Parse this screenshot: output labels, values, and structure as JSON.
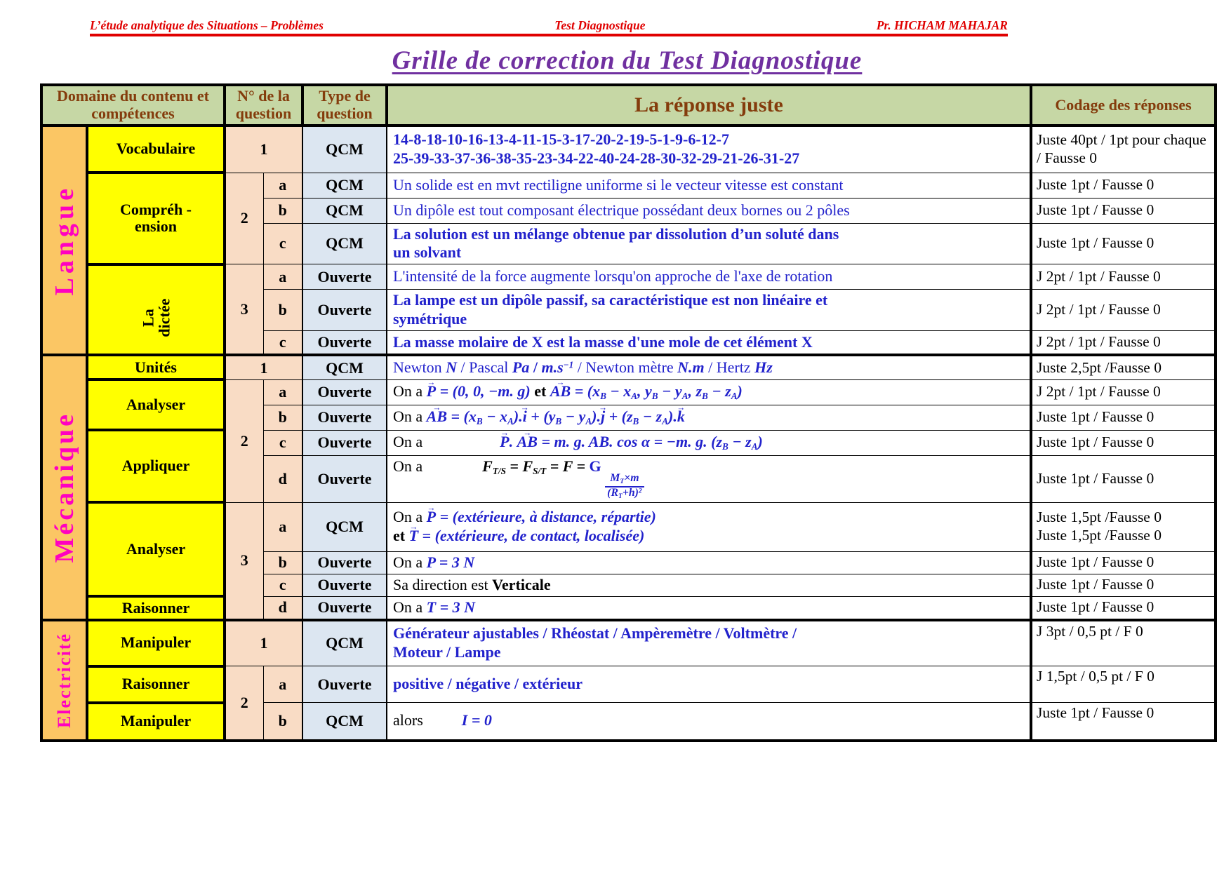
{
  "page_header": {
    "left": "L’étude analytique des Situations – Problèmes",
    "center": "Test Diagnostique",
    "right": "Pr. HICHAM MAHAJAR"
  },
  "title": "Grille de correction du Test Diagnostique",
  "colors": {
    "header_red": "#e00000",
    "title_purple": "#7030a0",
    "table_header_bg": "#c6d7a5",
    "table_header_text": "#843c0c",
    "domain_col_bg": "#fbc664",
    "domain_text": "#ff00c0",
    "competency_bg": "#ffff00",
    "question_col_bg": "#f9dcc5",
    "type_col_bg": "#dce6f1",
    "answer_blue": "#2222cc"
  },
  "table": {
    "header": {
      "domain": "Domaine du contenu et compétences",
      "num": "N° de la question",
      "type": "Type de question",
      "answer": "La réponse juste",
      "codage": "Codage des réponses"
    },
    "sections": [
      {
        "domain": "Langue",
        "rows": [
          {
            "comp": "Vocabulaire",
            "num": "1",
            "type": "QCM",
            "answer": [
              [
                {
                  "t": "14-8-18-10-16-13-4-11-15-3-17-20-2-19-5-1-9-6-12-7",
                  "cls": "blub"
                }
              ],
              [
                {
                  "t": "25-39-33-37-36-38-35-23-34-22-40-24-28-30-32-29-21-26-31-27",
                  "cls": "blub"
                }
              ]
            ],
            "codage": "Juste 40pt / 1pt pour chaque / Fausse 0"
          },
          {
            "comp": "Compréh -\nension",
            "num": "2",
            "letter": "a",
            "type": "QCM",
            "answer": [
              [
                {
                  "t": "Un solide est en mvt rectiligne uniforme si le vecteur vitesse est constant",
                  "cls": "blu"
                }
              ]
            ],
            "codage": "Juste 1pt / Fausse 0"
          },
          {
            "letter": "b",
            "type": "QCM",
            "answer": [
              [
                {
                  "t": "Un dipôle est tout composant électrique possédant deux bornes ou 2 pôles",
                  "cls": "blu"
                }
              ]
            ],
            "codage": "Juste 1pt / Fausse 0"
          },
          {
            "letter": "c",
            "type": "QCM",
            "answer": [
              [
                {
                  "t": "La solution est un mélange obtenue par dissolution d’un soluté dans",
                  "cls": "blub"
                }
              ],
              [
                {
                  "t": "un solvant",
                  "cls": "blub"
                }
              ]
            ],
            "codage": "Juste 1pt / Fausse 0"
          },
          {
            "comp": "La\ndictée",
            "num": "3",
            "letter": "a",
            "type": "Ouverte",
            "answer": [
              [
                {
                  "t": "L'intensité de la force augmente lorsqu'on approche de l'axe de rotation",
                  "cls": "blu"
                }
              ]
            ],
            "codage": "J 2pt / 1pt / Fausse 0"
          },
          {
            "letter": "b",
            "type": "Ouverte",
            "answer": [
              [
                {
                  "t": "La lampe est un dipôle passif, sa caractéristique est non linéaire et",
                  "cls": "blub"
                }
              ],
              [
                {
                  "t": "symétrique",
                  "cls": "blub"
                }
              ]
            ],
            "codage": "J 2pt / 1pt / Fausse 0"
          },
          {
            "letter": "c",
            "type": "Ouverte",
            "answer": [
              [
                {
                  "t": "La masse molaire de X est la masse d'une mole de cet élément X",
                  "cls": "blub"
                }
              ]
            ],
            "codage": "J 2pt / 1pt / Fausse 0"
          }
        ]
      },
      {
        "domain": "Mécanique",
        "rows": [
          {
            "comp": "Unités",
            "num": "1",
            "type": "QCM",
            "answer": [
              [
                {
                  "t": "Newton ",
                  "cls": "blu"
                },
                {
                  "t": "N",
                  "cls": "blubi"
                },
                {
                  "t": " / ",
                  "cls": "blu"
                },
                {
                  "t": "Pascal  ",
                  "cls": "blu"
                },
                {
                  "t": "Pa",
                  "cls": "blubi"
                },
                {
                  "t": "  /  ",
                  "cls": "blub"
                },
                {
                  "t": "m.s",
                  "cls": "blubi",
                  "sup": "−1"
                },
                {
                  "t": "   / ",
                  "cls": "blu"
                },
                {
                  "t": "Newton mètre   ",
                  "cls": "blu"
                },
                {
                  "t": "N.m",
                  "cls": "blubi"
                },
                {
                  "t": "   / ",
                  "cls": "blu"
                },
                {
                  "t": "Hertz   ",
                  "cls": "blu"
                },
                {
                  "t": "Hz",
                  "cls": "blubi"
                }
              ]
            ],
            "codage": "Juste 2,5pt /Fausse 0"
          },
          {
            "comp": "Analyser",
            "num": "2",
            "letter": "a",
            "type": "Ouverte",
            "answer": [
              [
                {
                  "t": "On a ",
                  "cls": "blk"
                },
                {
                  "t": "P",
                  "cls": "blubi",
                  "vec": 1
                },
                {
                  "t": " = (0, 0, −m. g)  ",
                  "cls": "blubi"
                },
                {
                  "t": "et  ",
                  "cls": "blkb"
                },
                {
                  "t": "AB",
                  "cls": "blubi",
                  "vec": 1
                },
                {
                  "t": " = (x",
                  "cls": "blubi",
                  "sub": "B"
                },
                {
                  "t": " − x",
                  "cls": "blubi",
                  "sub": "A"
                },
                {
                  "t": ", y",
                  "cls": "blubi",
                  "sub": "B"
                },
                {
                  "t": " − y",
                  "cls": "blubi",
                  "sub": "A"
                },
                {
                  "t": ", z",
                  "cls": "blubi",
                  "sub": "B"
                },
                {
                  "t": " − z",
                  "cls": "blubi",
                  "sub": "A"
                },
                {
                  "t": ")",
                  "cls": "blubi"
                }
              ]
            ],
            "codage": "J 2pt / 1pt / Fausse 0"
          },
          {
            "letter": "b",
            "type": "Ouverte",
            "answer": [
              [
                {
                  "t": "On a ",
                  "cls": "blk"
                },
                {
                  "t": "AB",
                  "cls": "blubi",
                  "vec": 1
                },
                {
                  "t": " = (x",
                  "cls": "blubi",
                  "sub": "B"
                },
                {
                  "t": " − x",
                  "cls": "blubi",
                  "sub": "A"
                },
                {
                  "t": ").",
                  "cls": "blubi"
                },
                {
                  "t": "i",
                  "cls": "blubi",
                  "vec": 1
                },
                {
                  "t": " + (y",
                  "cls": "blubi",
                  "sub": "B"
                },
                {
                  "t": " − y",
                  "cls": "blubi",
                  "sub": "A"
                },
                {
                  "t": ").",
                  "cls": "blubi"
                },
                {
                  "t": "j",
                  "cls": "blubi",
                  "vec": 1
                },
                {
                  "t": " + (z",
                  "cls": "blubi",
                  "sub": "B"
                },
                {
                  "t": " − z",
                  "cls": "blubi",
                  "sub": "A"
                },
                {
                  "t": ").",
                  "cls": "blubi"
                },
                {
                  "t": "k",
                  "cls": "blubi",
                  "vec": 1
                }
              ]
            ],
            "codage": "Juste 1pt / Fausse 0"
          },
          {
            "comp": "Appliquer",
            "letter": "c",
            "type": "Ouverte",
            "answer": [
              [
                {
                  "t": "On a",
                  "cls": "blk"
                },
                {
                  "gap": 110
                },
                {
                  "t": "P",
                  "cls": "blubi",
                  "vec": 1
                },
                {
                  "t": ". ",
                  "cls": "blubi"
                },
                {
                  "t": "AB",
                  "cls": "blubi",
                  "vec": 1
                },
                {
                  "t": " = m. g. AB. cos α = −m. g. (z",
                  "cls": "blubi",
                  "sub": "B"
                },
                {
                  "t": " − z",
                  "cls": "blubi",
                  "sub": "A"
                },
                {
                  "t": ")",
                  "cls": "blubi"
                }
              ]
            ],
            "codage": "Juste 1pt / Fausse 0"
          },
          {
            "letter": "d",
            "type": "Ouverte",
            "answer": [
              [
                {
                  "t": "On a",
                  "cls": "blk"
                },
                {
                  "gap": 85
                },
                {
                  "t": "F",
                  "cls": "blkbi",
                  "sub": "T/S"
                },
                {
                  "t": " = F",
                  "cls": "blkbi",
                  "sub": "S/T"
                },
                {
                  "t": " = F =  ",
                  "cls": "blkbi"
                },
                {
                  "t": "G ",
                  "cls": "blub"
                },
                {
                  "cls": "blub",
                  "frac": {
                    "num": [
                      {
                        "t": "M",
                        "cls": "blubi",
                        "sub": "T"
                      },
                      {
                        "t": "×m",
                        "cls": "blubi"
                      }
                    ],
                    "den": [
                      {
                        "t": "(R",
                        "cls": "blubi",
                        "sub": "T"
                      },
                      {
                        "t": "+h)",
                        "cls": "blubi",
                        "sup": "2"
                      }
                    ]
                  }
                }
              ]
            ],
            "codage": "Juste 1pt / Fausse 0"
          },
          {
            "comp": "Analyser",
            "num": "3",
            "letter": "a",
            "type": "QCM",
            "answer": [
              [
                {
                  "t": "On a  ",
                  "cls": "blk"
                },
                {
                  "t": "P",
                  "cls": "blubi",
                  "vec": 1
                },
                {
                  "t": " = (extérieure, à distance, répartie)",
                  "cls": "blubi"
                }
              ],
              [
                {
                  "t": "et   ",
                  "cls": "blkb"
                },
                {
                  "t": "T",
                  "cls": "blubi",
                  "vec": 1
                },
                {
                  "t": " = (extérieure, de contact, localisée)",
                  "cls": "blubi"
                }
              ]
            ],
            "codage": "Juste 1,5pt /Fausse 0\nJuste 1,5pt /Fausse 0"
          },
          {
            "letter": "b",
            "type": "Ouverte",
            "answer": [
              [
                {
                  "t": "On a  ",
                  "cls": "blk"
                },
                {
                  "t": "P = 3 N",
                  "cls": "blubi"
                }
              ]
            ],
            "codage": "Juste 1pt / Fausse 0"
          },
          {
            "letter": "c",
            "type": "Ouverte",
            "answer": [
              [
                {
                  "t": "Sa direction est ",
                  "cls": "blk"
                },
                {
                  "t": "Verticale",
                  "cls": "blkb"
                }
              ]
            ],
            "codage": "Juste 1pt / Fausse 0"
          },
          {
            "comp": "Raisonner",
            "letter": "d",
            "type": "Ouverte",
            "answer": [
              [
                {
                  "t": "On a  ",
                  "cls": "blk"
                },
                {
                  "t": "T = 3 N",
                  "cls": "blubi"
                }
              ]
            ],
            "codage": "Juste 1pt / Fausse 0"
          }
        ]
      },
      {
        "domain": "Electricité",
        "rows": [
          {
            "comp": "Manipuler",
            "num": "1",
            "type": "QCM",
            "answer": [
              [
                {
                  "t": "Générateur ajustables / Rhéostat / Ampèremètre / Voltmètre /",
                  "cls": "blub"
                }
              ],
              [
                {
                  "t": "Moteur / Lampe",
                  "cls": "blub"
                }
              ]
            ],
            "codage": "J 3pt / 0,5 pt / F 0"
          },
          {
            "comp": "Raisonner",
            "num": "2",
            "letter": "a",
            "type": "Ouverte",
            "answer": [
              [
                {
                  "t": "positive / négative / extérieur",
                  "cls": "blub"
                }
              ]
            ],
            "codage": "J 1,5pt / 0,5 pt / F 0"
          },
          {
            "comp": "Manipuler",
            "letter": "b",
            "type": "QCM",
            "answer": [
              [
                {
                  "t": "alors",
                  "cls": "blk"
                },
                {
                  "gap": 55
                },
                {
                  "t": "I = 0",
                  "cls": "blubi"
                }
              ]
            ],
            "codage": "Juste 1pt / Fausse 0"
          }
        ]
      }
    ]
  }
}
